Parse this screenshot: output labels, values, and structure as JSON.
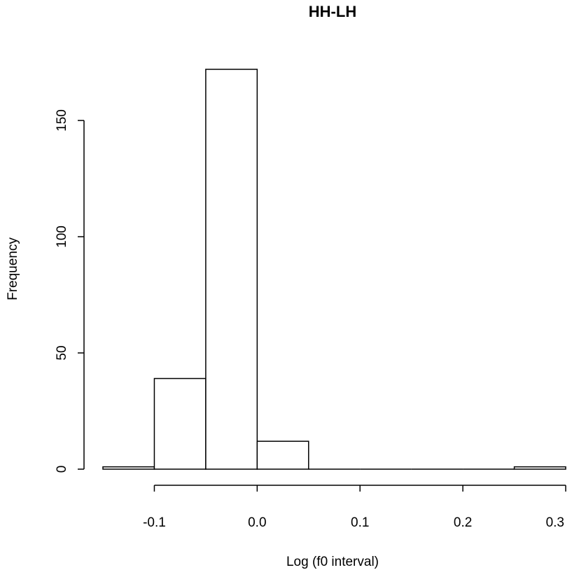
{
  "chart_data": {
    "type": "bar",
    "title": "HH-LH",
    "xlabel": "Log (f0 interval)",
    "ylabel": "Frequency",
    "bin_edges": [
      -0.15,
      -0.1,
      -0.05,
      0.0,
      0.05,
      0.1,
      0.15,
      0.2,
      0.25,
      0.3
    ],
    "values": [
      1,
      39,
      172,
      12,
      0,
      0,
      0,
      0,
      1
    ],
    "xlim": [
      -0.15,
      0.3
    ],
    "ylim": [
      0,
      172
    ],
    "x_ticks": [
      "-0.1",
      "0.0",
      "0.1",
      "0.2",
      "0.3"
    ],
    "y_ticks": [
      "0",
      "50",
      "100",
      "150"
    ],
    "grid": false,
    "legend": "none"
  }
}
